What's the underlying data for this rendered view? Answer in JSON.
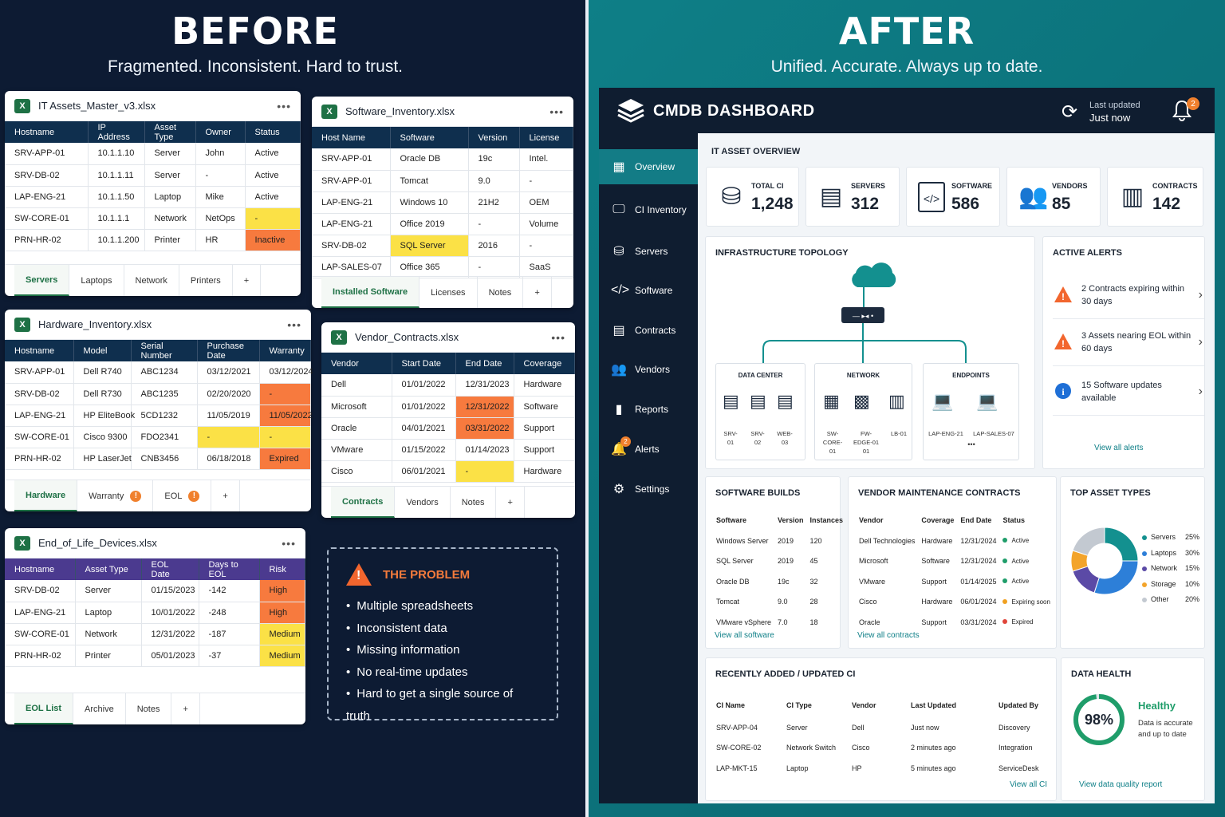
{
  "before": {
    "title": "BEFORE",
    "subtitle": "Fragmented. Inconsistent. Hard to trust.",
    "it_assets": {
      "filename": "IT Assets_Master_v3.xlsx",
      "headers": [
        "Hostname",
        "IP Address",
        "Asset Type",
        "Owner",
        "Status"
      ],
      "rows": [
        [
          "SRV-APP-01",
          "10.1.1.10",
          "Server",
          "John",
          "Active"
        ],
        [
          "SRV-DB-02",
          "10.1.1.11",
          "Server",
          "-",
          "Active"
        ],
        [
          "LAP-ENG-21",
          "10.1.1.50",
          "Laptop",
          "Mike",
          "Active"
        ],
        [
          "SW-CORE-01",
          "10.1.1.1",
          "Network",
          "NetOps",
          "-"
        ],
        [
          "PRN-HR-02",
          "10.1.1.200",
          "Printer",
          "HR",
          "Inactive"
        ]
      ],
      "tabs": [
        "Servers",
        "Laptops",
        "Network",
        "Printers",
        "+"
      ]
    },
    "software": {
      "filename": "Software_Inventory.xlsx",
      "headers": [
        "Host Name",
        "Software",
        "Version",
        "License"
      ],
      "rows": [
        [
          "SRV-APP-01",
          "Oracle DB",
          "19c",
          "Intel."
        ],
        [
          "SRV-APP-01",
          "Tomcat",
          "9.0",
          "-"
        ],
        [
          "LAP-ENG-21",
          "Windows 10",
          "21H2",
          "OEM"
        ],
        [
          "LAP-ENG-21",
          "Office 2019",
          "-",
          "Volume"
        ],
        [
          "SRV-DB-02",
          "SQL Server",
          "2016",
          "-"
        ],
        [
          "LAP-SALES-07",
          "Office 365",
          "-",
          "SaaS"
        ]
      ],
      "tabs": [
        "Installed Software",
        "Licenses",
        "Notes",
        "+"
      ]
    },
    "hardware": {
      "filename": "Hardware_Inventory.xlsx",
      "headers": [
        "Hostname",
        "Model",
        "Serial Number",
        "Purchase Date",
        "Warranty"
      ],
      "rows": [
        [
          "SRV-APP-01",
          "Dell R740",
          "ABC1234",
          "03/12/2021",
          "03/12/2024"
        ],
        [
          "SRV-DB-02",
          "Dell R730",
          "ABC1235",
          "02/20/2020",
          "-"
        ],
        [
          "LAP-ENG-21",
          "HP EliteBook",
          "5CD1232",
          "11/05/2019",
          "11/05/2022"
        ],
        [
          "SW-CORE-01",
          "Cisco 9300",
          "FDO2341",
          "-",
          "-"
        ],
        [
          "PRN-HR-02",
          "HP LaserJet",
          "CNB3456",
          "06/18/2018",
          "Expired"
        ]
      ],
      "tabs": [
        "Hardware",
        "Warranty",
        "EOL",
        "+"
      ],
      "tab_warn": "!"
    },
    "vendor": {
      "filename": "Vendor_Contracts.xlsx",
      "headers": [
        "Vendor",
        "Start Date",
        "End Date",
        "Coverage"
      ],
      "rows": [
        [
          "Dell",
          "01/01/2022",
          "12/31/2023",
          "Hardware"
        ],
        [
          "Microsoft",
          "01/01/2022",
          "12/31/2022",
          "Software"
        ],
        [
          "Oracle",
          "04/01/2021",
          "03/31/2022",
          "Support"
        ],
        [
          "VMware",
          "01/15/2022",
          "01/14/2023",
          "Support"
        ],
        [
          "Cisco",
          "06/01/2021",
          "-",
          "Hardware"
        ]
      ],
      "tabs": [
        "Contracts",
        "Vendors",
        "Notes",
        "+"
      ]
    },
    "eol": {
      "filename": "End_of_Life_Devices.xlsx",
      "headers": [
        "Hostname",
        "Asset Type",
        "EOL Date",
        "Days to EOL",
        "Risk"
      ],
      "rows": [
        [
          "SRV-DB-02",
          "Server",
          "01/15/2023",
          "-142",
          "High"
        ],
        [
          "LAP-ENG-21",
          "Laptop",
          "10/01/2022",
          "-248",
          "High"
        ],
        [
          "SW-CORE-01",
          "Network",
          "12/31/2022",
          "-187",
          "Medium"
        ],
        [
          "PRN-HR-02",
          "Printer",
          "05/01/2023",
          "-37",
          "Medium"
        ]
      ],
      "tabs": [
        "EOL List",
        "Archive",
        "Notes",
        "+"
      ]
    },
    "problem": {
      "title": "THE PROBLEM",
      "items": [
        "Multiple spreadsheets",
        "Inconsistent data",
        "Missing information",
        "No real-time updates",
        "Hard to get a single source of truth"
      ]
    }
  },
  "after": {
    "title": "AFTER",
    "subtitle": "Unified. Accurate. Always up to date.",
    "dashboard": {
      "title": "CMDB DASHBOARD",
      "last_updated_label": "Last updated",
      "last_updated_value": "Just now",
      "alert_badge": "2",
      "nav": [
        "Overview",
        "CI Inventory",
        "Servers",
        "Software",
        "Contracts",
        "Vendors",
        "Reports",
        "Alerts",
        "Settings"
      ],
      "nav_alert_badge": "2",
      "overview_title": "IT ASSET OVERVIEW",
      "stats": [
        {
          "label": "TOTAL CI",
          "value": "1,248"
        },
        {
          "label": "SERVERS",
          "value": "312"
        },
        {
          "label": "SOFTWARE",
          "value": "586"
        },
        {
          "label": "VENDORS",
          "value": "85"
        },
        {
          "label": "CONTRACTS",
          "value": "142"
        }
      ],
      "topology": {
        "title": "INFRASTRUCTURE TOPOLOGY",
        "groups": [
          "DATA CENTER",
          "NETWORK",
          "ENDPOINTS"
        ],
        "dc_labels": [
          "SRV-\n01",
          "SRV-\n02",
          "WEB-\n03"
        ],
        "net_labels": [
          "SW-\nCORE-\n01",
          "FW-\nEDGE-01\n01",
          "LB-01"
        ],
        "ep_labels": [
          "LAP-ENG-21",
          "LAP-SALES-07"
        ],
        "more": "•••"
      },
      "alerts": {
        "title": "ACTIVE ALERTS",
        "items": [
          "2 Contracts expiring within 30 days",
          "3 Assets nearing EOL within 60 days",
          "15 Software updates available"
        ],
        "link": "View all alerts"
      },
      "builds": {
        "title": "SOFTWARE BUILDS",
        "headers": [
          "Software",
          "Version",
          "Instances"
        ],
        "rows": [
          [
            "Windows Server",
            "2019",
            "120"
          ],
          [
            "SQL Server",
            "2019",
            "45"
          ],
          [
            "Oracle DB",
            "19c",
            "32"
          ],
          [
            "Tomcat",
            "9.0",
            "28"
          ],
          [
            "VMware vSphere",
            "7.0",
            "18"
          ]
        ],
        "link": "View all software"
      },
      "contracts": {
        "title": "VENDOR MAINTENANCE CONTRACTS",
        "headers": [
          "Vendor",
          "Coverage",
          "End Date",
          "Status"
        ],
        "rows": [
          [
            "Dell Technologies",
            "Hardware",
            "12/31/2024",
            "Active"
          ],
          [
            "Microsoft",
            "Software",
            "12/31/2024",
            "Active"
          ],
          [
            "VMware",
            "Support",
            "01/14/2025",
            "Active"
          ],
          [
            "Cisco",
            "Hardware",
            "06/01/2024",
            "Expiring soon"
          ],
          [
            "Oracle",
            "Support",
            "03/31/2024",
            "Expired"
          ]
        ],
        "status_colors": {
          "Active": "#1f9d6a",
          "Expiring soon": "#f0a020",
          "Expired": "#e0453a"
        },
        "link": "View all contracts"
      },
      "asset_types": {
        "title": "TOP ASSET TYPES",
        "chart_data": {
          "type": "pie",
          "categories": [
            "Servers",
            "Laptops",
            "Network",
            "Storage",
            "Other"
          ],
          "values": [
            25,
            30,
            15,
            10,
            20
          ],
          "labels": [
            "25%",
            "30%",
            "15%",
            "10%",
            "20%"
          ],
          "colors": [
            "#13908f",
            "#2d7fd8",
            "#5b4aa6",
            "#f3a42b",
            "#c3c9d1"
          ]
        }
      },
      "recent": {
        "title": "RECENTLY ADDED / UPDATED CI",
        "headers": [
          "CI Name",
          "CI Type",
          "Vendor",
          "Last Updated",
          "Updated By"
        ],
        "rows": [
          [
            "SRV-APP-04",
            "Server",
            "Dell",
            "Just now",
            "Discovery"
          ],
          [
            "SW-CORE-02",
            "Network Switch",
            "Cisco",
            "2 minutes ago",
            "Integration"
          ],
          [
            "LAP-MKT-15",
            "Laptop",
            "HP",
            "5 minutes ago",
            "ServiceDesk"
          ]
        ],
        "link": "View all CI"
      },
      "health": {
        "title": "DATA HEALTH",
        "percent": 98,
        "percent_label": "98%",
        "status": "Healthy",
        "desc": "Data is accurate and up to date",
        "link": "View data quality report"
      }
    }
  }
}
